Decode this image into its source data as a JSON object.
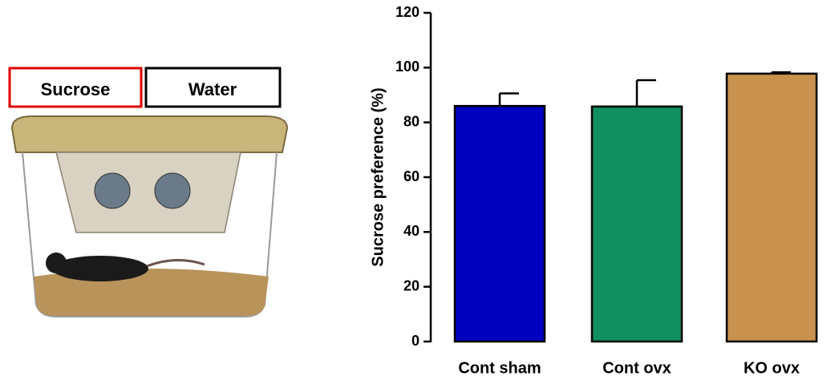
{
  "photo_labels": [
    "Sucrose",
    "Water"
  ],
  "chart_data": {
    "type": "bar",
    "y_label": "Sucrose preference (%)",
    "categories": [
      "Cont sham",
      "Cont ovx",
      "KO ovx"
    ],
    "values": [
      86,
      85.8,
      97.8
    ],
    "errors": [
      4.6,
      9.6,
      0.5
    ],
    "colors": [
      "#0000c0",
      "#109060",
      "#c8914e"
    ],
    "ylim": [
      0,
      120
    ],
    "yticks": [
      0,
      20,
      40,
      60,
      80,
      100,
      120
    ]
  }
}
